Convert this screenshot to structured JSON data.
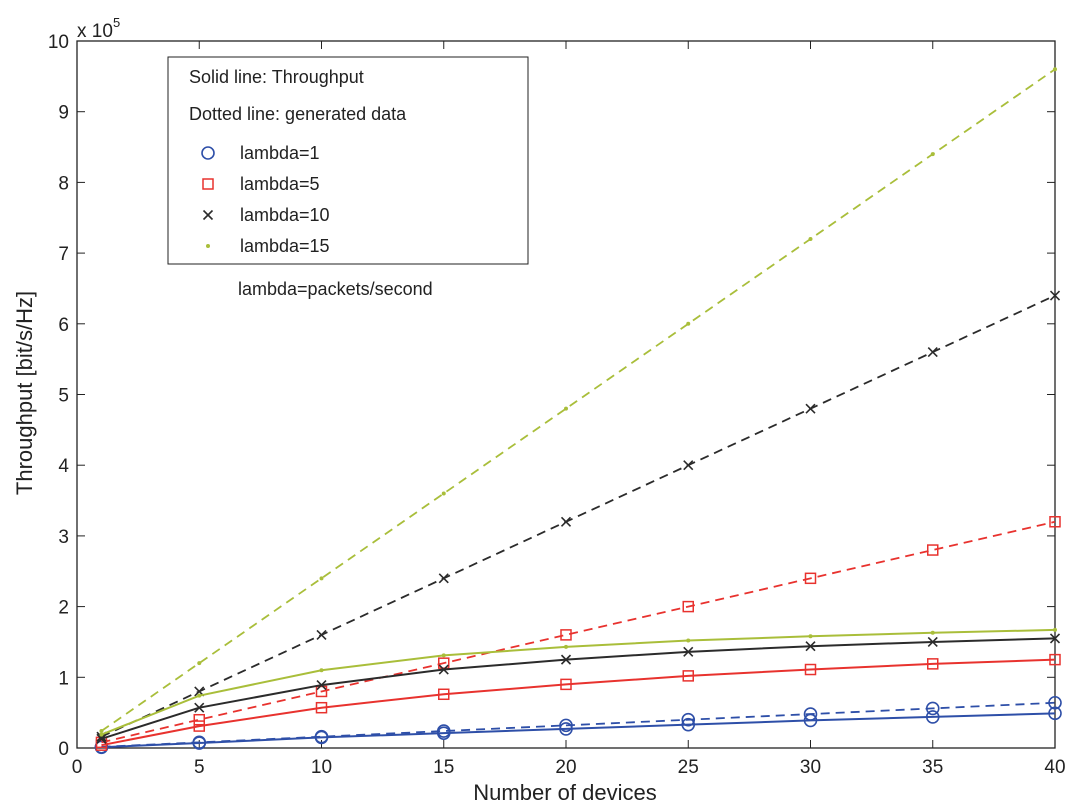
{
  "chart_data": {
    "type": "line",
    "xlabel": "Number of devices",
    "ylabel": "Throughput [bit/s/Hz]",
    "y_multiplier": "x 10",
    "y_multiplier_exp": "5",
    "xlim": [
      0,
      40
    ],
    "ylim": [
      0,
      10
    ],
    "xticks": [
      0,
      5,
      10,
      15,
      20,
      25,
      30,
      35,
      40
    ],
    "yticks": [
      0,
      1,
      2,
      3,
      4,
      5,
      6,
      7,
      8,
      9,
      10
    ],
    "x": [
      1,
      5,
      10,
      15,
      20,
      25,
      30,
      35,
      40
    ],
    "grid": false,
    "legend_position": "top-left",
    "legend_header": [
      "Solid line: Throughput",
      "Dotted line: generated data"
    ],
    "note": "lambda=packets/second",
    "series": [
      {
        "name": "lambda=1",
        "color": "#2e4fa8",
        "marker": "circle",
        "throughput": [
          0.01,
          0.07,
          0.15,
          0.21,
          0.27,
          0.33,
          0.39,
          0.44,
          0.49
        ],
        "generated": [
          0.016,
          0.08,
          0.16,
          0.24,
          0.32,
          0.4,
          0.48,
          0.56,
          0.64
        ]
      },
      {
        "name": "lambda=5",
        "color": "#e8322e",
        "marker": "square",
        "throughput": [
          0.04,
          0.31,
          0.57,
          0.76,
          0.9,
          1.02,
          1.11,
          1.19,
          1.25
        ],
        "generated": [
          0.08,
          0.4,
          0.8,
          1.2,
          1.6,
          2.0,
          2.4,
          2.8,
          3.2
        ]
      },
      {
        "name": "lambda=10",
        "color": "#2b2b2b",
        "marker": "x",
        "throughput": [
          0.13,
          0.57,
          0.89,
          1.11,
          1.25,
          1.36,
          1.44,
          1.5,
          1.55
        ],
        "generated": [
          0.16,
          0.8,
          1.6,
          2.4,
          3.2,
          4.0,
          4.8,
          5.6,
          6.4
        ]
      },
      {
        "name": "lambda=15",
        "color": "#a9be3a",
        "marker": "dot",
        "throughput": [
          0.19,
          0.74,
          1.1,
          1.31,
          1.43,
          1.52,
          1.58,
          1.63,
          1.67
        ],
        "generated": [
          0.24,
          1.2,
          2.4,
          3.6,
          4.8,
          6.0,
          7.2,
          8.4,
          9.6
        ]
      }
    ]
  }
}
